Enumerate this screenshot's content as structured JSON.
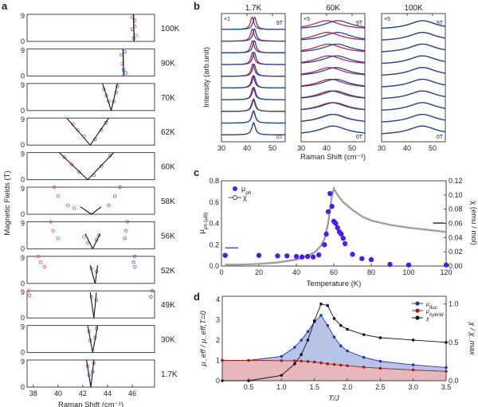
{
  "figure": {
    "panels": [
      "a",
      "b",
      "c",
      "d"
    ]
  },
  "chart_data": [
    {
      "panel": "a",
      "type": "scatter",
      "xlabel": "Raman Shift (cm⁻¹)",
      "ylabel": "Magnetic Fields (T)",
      "xlim": [
        37.5,
        47.8
      ],
      "ylim": [
        0,
        9
      ],
      "xticks": [
        "38",
        "40",
        "42",
        "44",
        "46"
      ],
      "xtick_values": [
        38,
        40,
        42,
        44,
        46
      ],
      "yticks": [
        "0",
        "9"
      ],
      "colors": {
        "red": "#e0505a",
        "blue": "#4a5fc8",
        "fit": "#111111"
      },
      "subplots": [
        {
          "label": "100K",
          "red_line": [
            [
              46.1,
              9
            ],
            [
              46.15,
              0
            ]
          ],
          "blue_line": [
            [
              46.1,
              9
            ],
            [
              46.15,
              0
            ]
          ],
          "red_points": [
            [
              46.0,
              8
            ],
            [
              46.2,
              5
            ],
            [
              46.3,
              2
            ]
          ],
          "blue_points": [
            [
              46.2,
              7
            ],
            [
              46.0,
              4
            ],
            [
              46.1,
              1
            ]
          ]
        },
        {
          "label": "90K",
          "red_line": [
            [
              45.25,
              9
            ],
            [
              45.3,
              0
            ]
          ],
          "blue_line": [
            [
              45.25,
              9
            ],
            [
              45.3,
              0
            ]
          ],
          "red_points": [
            [
              45.1,
              7
            ],
            [
              45.2,
              4
            ]
          ],
          "blue_points": [
            [
              45.4,
              8
            ],
            [
              45.3,
              2
            ],
            [
              45.5,
              1
            ]
          ]
        },
        {
          "label": "70K",
          "red_line": [
            [
              43.6,
              9
            ],
            [
              44.3,
              0
            ]
          ],
          "blue_line": [
            [
              44.3,
              0
            ],
            [
              44.8,
              9
            ]
          ],
          "red_points": [
            [
              43.7,
              7
            ],
            [
              43.9,
              5
            ],
            [
              44.1,
              3
            ]
          ],
          "blue_points": [
            [
              44.5,
              3
            ],
            [
              44.7,
              6
            ],
            [
              44.8,
              8
            ]
          ]
        },
        {
          "label": "62K",
          "red_line": [
            [
              40.7,
              9
            ],
            [
              42.6,
              0
            ]
          ],
          "blue_line": [
            [
              42.6,
              0
            ],
            [
              44.1,
              9
            ]
          ],
          "red_points": [
            [
              41.2,
              7
            ],
            [
              41.6,
              5
            ],
            [
              42.1,
              3
            ]
          ],
          "blue_points": [
            [
              43.0,
              2
            ],
            [
              43.5,
              5
            ],
            [
              43.9,
              7.5
            ]
          ]
        },
        {
          "label": "60K",
          "red_line": [
            [
              40.1,
              9
            ],
            [
              42.4,
              0
            ]
          ],
          "blue_line": [
            [
              42.4,
              0
            ],
            [
              44.5,
              9
            ]
          ],
          "red_points": [
            [
              40.5,
              7.5
            ],
            [
              41.1,
              5
            ],
            [
              41.7,
              2.5
            ]
          ],
          "blue_points": [
            [
              42.9,
              1.5
            ],
            [
              43.5,
              4.5
            ],
            [
              44.2,
              8
            ]
          ]
        },
        {
          "label": "58K",
          "red_line": [
            [
              41.8,
              2.5
            ],
            [
              42.7,
              0
            ]
          ],
          "blue_line": [
            [
              42.7,
              0
            ],
            [
              43.5,
              2.5
            ]
          ],
          "red_points": [
            [
              39.7,
              9
            ],
            [
              40.0,
              6
            ],
            [
              40.8,
              3
            ],
            [
              41.3,
              2
            ]
          ],
          "blue_points": [
            [
              44.1,
              3
            ],
            [
              44.6,
              6
            ],
            [
              45.0,
              9
            ]
          ]
        },
        {
          "label": "56K",
          "red_line": [
            [
              42.2,
              5
            ],
            [
              42.8,
              0
            ]
          ],
          "blue_line": [
            [
              42.8,
              0
            ],
            [
              43.4,
              5
            ]
          ],
          "red_points": [
            [
              39.4,
              9
            ],
            [
              39.6,
              6
            ],
            [
              40.0,
              3.5
            ],
            [
              42.1,
              4
            ],
            [
              42.4,
              2
            ]
          ],
          "blue_points": [
            [
              45.6,
              9
            ],
            [
              45.5,
              6
            ],
            [
              45.4,
              3.5
            ],
            [
              43.1,
              3
            ],
            [
              43.3,
              4.5
            ]
          ]
        },
        {
          "label": "52K",
          "red_line": [
            [
              42.6,
              6
            ],
            [
              43.0,
              0
            ]
          ],
          "blue_line": [
            [
              43.0,
              0
            ],
            [
              43.2,
              6
            ]
          ],
          "red_points": [
            [
              38.4,
              9
            ],
            [
              38.6,
              7
            ],
            [
              38.9,
              5.5
            ],
            [
              42.7,
              5
            ]
          ],
          "blue_points": [
            [
              46.2,
              9
            ],
            [
              46.1,
              7
            ],
            [
              46.2,
              5.5
            ],
            [
              43.1,
              4
            ]
          ]
        },
        {
          "label": "49K",
          "red_line": [
            [
              42.6,
              8.5
            ],
            [
              42.9,
              0
            ]
          ],
          "blue_line": [
            [
              42.9,
              0
            ],
            [
              43.1,
              8.5
            ]
          ],
          "red_points": [
            [
              37.6,
              9
            ],
            [
              37.7,
              7.5
            ],
            [
              42.7,
              7
            ]
          ],
          "blue_points": [
            [
              47.6,
              9
            ],
            [
              47.5,
              7
            ],
            [
              43.1,
              6
            ]
          ]
        },
        {
          "label": "30K",
          "red_line": [
            [
              42.4,
              9
            ],
            [
              42.8,
              0
            ]
          ],
          "blue_line": [
            [
              42.8,
              0
            ],
            [
              43.2,
              9
            ]
          ],
          "red_points": [
            [
              42.5,
              7
            ],
            [
              42.6,
              4
            ]
          ],
          "blue_points": [
            [
              43.0,
              5
            ],
            [
              43.1,
              8
            ]
          ]
        },
        {
          "label": "1.7K",
          "red_line": [
            [
              42.3,
              9
            ],
            [
              42.65,
              0
            ]
          ],
          "blue_line": [
            [
              42.65,
              0
            ],
            [
              42.9,
              9
            ]
          ],
          "red_points": [
            [
              42.4,
              7
            ],
            [
              42.5,
              4
            ]
          ],
          "blue_points": [
            [
              42.8,
              5
            ],
            [
              42.9,
              8
            ]
          ]
        }
      ]
    },
    {
      "panel": "b",
      "type": "line",
      "ylabel": "Intensity (arb.unit)",
      "xlabel": "Raman Shift (cm⁻¹)",
      "xlim": [
        30,
        55
      ],
      "xticks": [
        "30",
        "40",
        "50"
      ],
      "xtick_values": [
        30,
        40,
        50
      ],
      "field_top": "9T",
      "field_bottom": "0T",
      "colors": {
        "red": "#c0284a",
        "blue": "#1e4a9a",
        "red_pts": "#f08098",
        "blue_pts": "#7fa8e0"
      },
      "subplots": [
        {
          "title": "1.7K",
          "scale": "×1",
          "traces": 10,
          "red_center_9T": 42.0,
          "blue_center_9T": 43.0,
          "center_0T": 42.6,
          "width": 0.8
        },
        {
          "title": "60K",
          "scale": "×5",
          "traces": 10,
          "red_center_9T": 40.0,
          "blue_center_9T": 44.5,
          "center_0T": 42.5,
          "width": 6.5
        },
        {
          "title": "100K",
          "scale": "×5",
          "traces": 10,
          "red_center_9T": 46.0,
          "blue_center_9T": 46.2,
          "center_0T": 46.0,
          "width": 6.5
        }
      ]
    },
    {
      "panel": "c",
      "type": "scatter",
      "xlabel": "Temperature (K)",
      "ylabel_left": "μ_ph (μ_B)",
      "ylabel_right": "χ (emu / mol)",
      "xlim": [
        0,
        120
      ],
      "ylim_left": [
        0,
        0.8
      ],
      "ylim_right": [
        0,
        0.12
      ],
      "xticks": [
        "0",
        "20",
        "40",
        "60",
        "80",
        "100",
        "120"
      ],
      "xtick_values": [
        0,
        20,
        40,
        60,
        80,
        100,
        120
      ],
      "yticks_left": [
        "0.0",
        "0.2",
        "0.4",
        "0.6",
        "0.8"
      ],
      "ytick_values_left": [
        0,
        0.2,
        0.4,
        0.6,
        0.8
      ],
      "yticks_right": [
        "0.00",
        "0.02",
        "0.04",
        "0.06",
        "0.08",
        "0.10",
        "0.12"
      ],
      "ytick_values_right": [
        0,
        0.02,
        0.04,
        0.06,
        0.08,
        0.1,
        0.12
      ],
      "legend": [
        {
          "label": "μ",
          "sub": "ph",
          "marker": "filled-circle"
        },
        {
          "label": "χ",
          "sub": "",
          "marker": "open-circle-line"
        }
      ],
      "legend_position": "top-left",
      "colors": {
        "mu_ph": "#4a1ee8",
        "chi": "#555555"
      },
      "series": [
        {
          "name": "mu_ph",
          "axis": "left",
          "x": [
            2,
            20,
            30,
            35,
            40,
            43,
            46,
            49,
            52,
            55,
            56,
            57,
            58,
            59,
            60,
            61,
            62,
            63,
            64,
            65,
            66,
            70,
            75,
            80,
            90,
            100,
            120
          ],
          "y": [
            0.1,
            0.1,
            0.095,
            0.095,
            0.09,
            0.085,
            0.09,
            0.085,
            0.105,
            0.2,
            0.3,
            0.51,
            0.68,
            0.56,
            0.42,
            0.4,
            0.36,
            0.32,
            0.3,
            0.26,
            0.21,
            0.11,
            0.07,
            0.06,
            0.015,
            0.01,
            0.01
          ]
        },
        {
          "name": "chi",
          "axis": "right",
          "x": [
            2,
            10,
            20,
            30,
            40,
            45,
            50,
            53,
            55,
            57,
            58,
            59,
            60,
            62,
            65,
            70,
            75,
            80,
            90,
            100,
            110,
            120
          ],
          "y": [
            0.002,
            0.002,
            0.003,
            0.005,
            0.009,
            0.013,
            0.02,
            0.028,
            0.038,
            0.06,
            0.08,
            0.098,
            0.109,
            0.1,
            0.09,
            0.079,
            0.07,
            0.064,
            0.058,
            0.054,
            0.051,
            0.048
          ]
        }
      ],
      "annotations": [
        {
          "type": "arrow-left-marker",
          "axis": "left",
          "x_range": [
            2,
            9
          ],
          "y": 0.17,
          "color": "#3a5ae0"
        },
        {
          "type": "arrow-right-marker",
          "axis": "right",
          "x_range": [
            113,
            119
          ],
          "y": 0.0605,
          "color": "#333333"
        }
      ]
    },
    {
      "panel": "d",
      "type": "area",
      "xlabel": "T/J",
      "ylabel_left": "μ_eff / μ_eff,T=0",
      "ylabel_right": "χ / χ_max",
      "xlim": [
        0.1,
        3.5
      ],
      "ylim_left": [
        0,
        4
      ],
      "ylim_right": [
        0,
        1.1
      ],
      "xticks": [
        "0.5",
        "1.0",
        "1.5",
        "2.0",
        "2.5",
        "3.0",
        "3.5"
      ],
      "xtick_values": [
        0.5,
        1.0,
        1.5,
        2.0,
        2.5,
        3.0,
        3.5
      ],
      "yticks_left": [
        "0",
        "1",
        "2",
        "3",
        "4"
      ],
      "ytick_values_left": [
        0,
        1,
        2,
        3,
        4
      ],
      "yticks_right": [
        "0.0",
        "0.5",
        "1.0"
      ],
      "ytick_values_right": [
        0,
        0.5,
        1.0
      ],
      "legend": [
        {
          "label": "μ",
          "sub": "fluc",
          "color": "#1e3aa8"
        },
        {
          "label": "μ",
          "sub": "hybrid",
          "color": "#b01818"
        },
        {
          "label": "χ",
          "sub": "",
          "color": "#111111"
        }
      ],
      "legend_position": "top-right",
      "colors": {
        "fluc": "#1e3aa8",
        "fluc_fill": "#b8c4e6",
        "hybrid": "#b01818",
        "hybrid_fill": "#e6b8bc",
        "chi": "#111111"
      },
      "series": [
        {
          "name": "mu_fluc",
          "axis": "left",
          "x": [
            0.1,
            0.5,
            1.0,
            1.2,
            1.3,
            1.4,
            1.5,
            1.6,
            1.7,
            1.8,
            1.9,
            2.0,
            2.25,
            2.5,
            3.0,
            3.5
          ],
          "y": [
            1.0,
            1.0,
            1.2,
            1.65,
            2.0,
            2.42,
            2.9,
            3.22,
            2.72,
            2.15,
            1.72,
            1.47,
            1.15,
            0.96,
            0.78,
            0.65
          ]
        },
        {
          "name": "mu_hybrid",
          "axis": "left",
          "x": [
            0.1,
            0.5,
            1.0,
            1.2,
            1.3,
            1.4,
            1.5,
            1.6,
            1.7,
            1.8,
            1.9,
            2.0,
            2.25,
            2.5,
            3.0,
            3.5
          ],
          "y": [
            1.0,
            1.0,
            0.99,
            0.98,
            0.97,
            0.95,
            0.92,
            0.88,
            0.83,
            0.8,
            0.77,
            0.74,
            0.67,
            0.61,
            0.53,
            0.46
          ]
        },
        {
          "name": "chi",
          "axis": "right",
          "x": [
            0.1,
            0.5,
            1.0,
            1.2,
            1.3,
            1.4,
            1.5,
            1.6,
            1.7,
            1.8,
            1.9,
            2.0,
            2.25,
            2.5,
            3.0,
            3.5
          ],
          "y": [
            0.0,
            0.0,
            0.07,
            0.22,
            0.34,
            0.53,
            0.78,
            1.0,
            0.98,
            0.81,
            0.72,
            0.67,
            0.6,
            0.56,
            0.53,
            0.5
          ]
        }
      ]
    }
  ]
}
